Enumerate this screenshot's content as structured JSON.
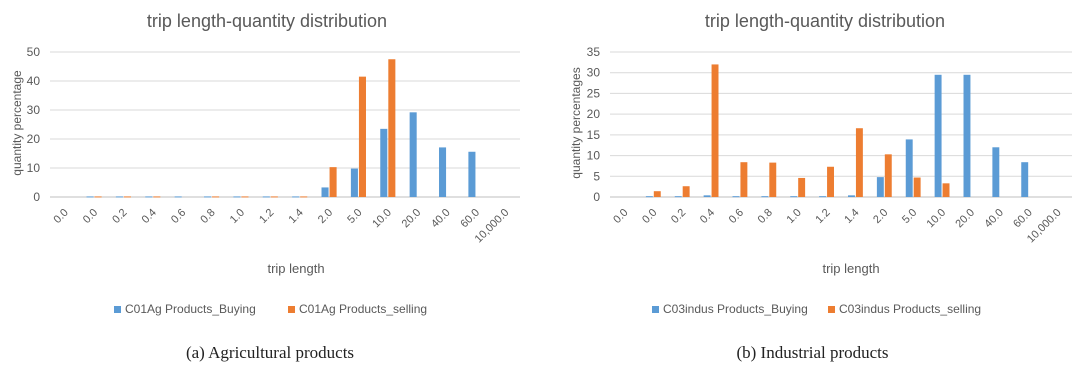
{
  "colors": {
    "buying": "#5b9bd5",
    "selling": "#ed7d31",
    "grid": "#d9d9d9",
    "text": "#595959"
  },
  "chart_data": [
    {
      "type": "bar",
      "title": "trip length-quantity distribution",
      "xlabel": "trip length",
      "ylabel": "quantity percentage",
      "ylim": [
        0,
        50
      ],
      "yticks": [
        "0",
        "10",
        "20",
        "30",
        "40",
        "50"
      ],
      "categories": [
        "0.0",
        "0.0",
        "0.2",
        "0.4",
        "0.6",
        "0.8",
        "1.0",
        "1.2",
        "1.4",
        "2.0",
        "5.0",
        "10.0",
        "20.0",
        "40.0",
        "60.0",
        "10,000.0"
      ],
      "series": [
        {
          "name": "C01Ag Products_Buying",
          "values": [
            0,
            0.2,
            0.2,
            0.2,
            0.2,
            0.2,
            0.2,
            0.2,
            0.2,
            3.3,
            9.8,
            23.5,
            29.2,
            17.1,
            15.6,
            0
          ]
        },
        {
          "name": "C01Ag Products_selling",
          "values": [
            0,
            0.2,
            0.2,
            0.2,
            0,
            0.2,
            0.2,
            0.2,
            0.2,
            10.3,
            41.5,
            47.5,
            0,
            0,
            0,
            0
          ]
        }
      ],
      "grid": true,
      "legend": "bottom"
    },
    {
      "type": "bar",
      "title": "trip length-quantity distribution",
      "xlabel": "trip length",
      "ylabel": "quantity percentages",
      "ylim": [
        0,
        35
      ],
      "yticks": [
        "0",
        "5",
        "10",
        "15",
        "20",
        "25",
        "30",
        "35"
      ],
      "categories": [
        "0.0",
        "0.0",
        "0.2",
        "0.4",
        "0.6",
        "0.8",
        "1.0",
        "1.2",
        "1.4",
        "2.0",
        "5.0",
        "10.0",
        "20.0",
        "40.0",
        "60.0",
        "10,000.0"
      ],
      "series": [
        {
          "name": "C03indus Products_Buying",
          "values": [
            0,
            0.2,
            0.2,
            0.4,
            0.2,
            0.2,
            0.2,
            0.2,
            0.4,
            4.8,
            13.9,
            29.5,
            29.5,
            12.0,
            8.4,
            0
          ]
        },
        {
          "name": "C03indus Products_selling",
          "values": [
            0,
            1.4,
            2.6,
            32.0,
            8.4,
            8.3,
            4.6,
            7.3,
            16.6,
            10.3,
            4.7,
            3.3,
            0,
            0,
            0,
            0
          ]
        }
      ],
      "grid": true,
      "legend": "bottom"
    }
  ],
  "captions": [
    "(a) Agricultural products",
    "(b) Industrial products"
  ]
}
